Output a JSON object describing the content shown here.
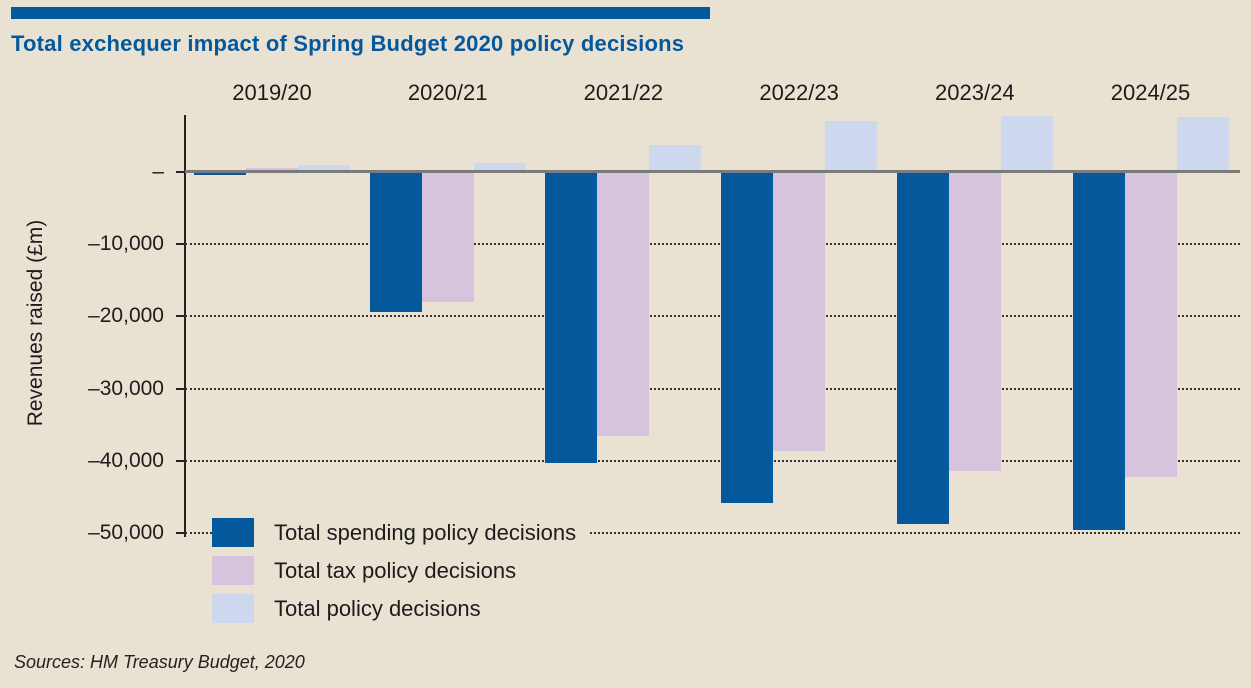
{
  "page": {
    "background_color": "#e9e2d3",
    "text_color": "#1c1c1c"
  },
  "header": {
    "accent_bar_color": "#04589c",
    "title_color": "#04589c"
  },
  "source_note": "Sources: HM Treasury Budget, 2020",
  "chart_data": {
    "type": "bar",
    "title": "Total exchequer impact of Spring Budget 2020 policy decisions",
    "ylabel": "Revenues raised (£m)",
    "xlabel": "",
    "categories": [
      "2019/20",
      "2020/21",
      "2021/22",
      "2022/23",
      "2023/24",
      "2024/25"
    ],
    "series": [
      {
        "name": "Total spending policy decisions",
        "color": "#04589c",
        "values": [
          -400,
          -19400,
          -40300,
          -45800,
          -48800,
          -49600
        ]
      },
      {
        "name": "Total tax policy decisions",
        "color": "#d6c4de",
        "values": [
          600,
          -18000,
          -36600,
          -38700,
          -41400,
          -42300
        ]
      },
      {
        "name": "Total policy decisions",
        "color": "#cdd8ee",
        "values": [
          950,
          1300,
          3800,
          7000,
          7700,
          7600
        ]
      }
    ],
    "ylim": [
      -50000,
      8000
    ],
    "yticks": [
      {
        "value": 0,
        "label": "–"
      },
      {
        "value": -10000,
        "label": "–10,000"
      },
      {
        "value": -20000,
        "label": "–20,000"
      },
      {
        "value": -30000,
        "label": "–30,000"
      },
      {
        "value": -40000,
        "label": "–40,000"
      },
      {
        "value": -50000,
        "label": "–50,000"
      }
    ],
    "grid": "horizontal-dotted",
    "grid_color": "#333333",
    "zero_line_color": "#7b7b7b",
    "axis_color": "#222222",
    "legend_position": "inside-bottom-left"
  }
}
